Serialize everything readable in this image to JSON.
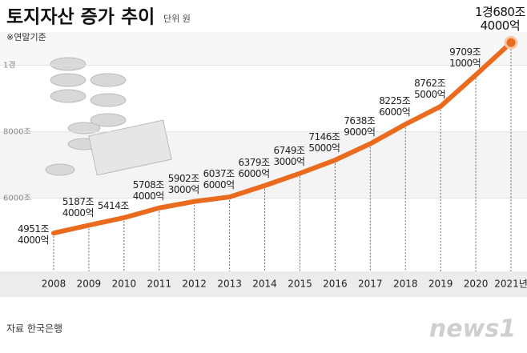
{
  "chart_data": {
    "type": "line",
    "title": "토지자산 증가 추이",
    "unit": "단위 원",
    "note": "※연말기준",
    "source": "자료 한국은행",
    "categories": [
      "2008",
      "2009",
      "2010",
      "2011",
      "2012",
      "2013",
      "2014",
      "2015",
      "2016",
      "2017",
      "2018",
      "2019",
      "2020",
      "2021년"
    ],
    "values": [
      4951.4,
      5187.4,
      5414,
      5708.4,
      5902.3,
      6037.6,
      6379.6,
      6749.3,
      7146.5,
      7638.9,
      8225.6,
      8762.5,
      9709.1,
      10680.4
    ],
    "value_labels": [
      "4951조\n4000억",
      "5187조\n4000억",
      "5414조",
      "5708조\n4000억",
      "5902조\n3000억",
      "6037조\n6000억",
      "6379조\n6000억",
      "6749조\n3000억",
      "7146조\n5000억",
      "7638조\n9000억",
      "8225조\n6000억",
      "8762조\n5000억",
      "9709조\n1000억",
      "1경680조\n4000억"
    ],
    "color": "#ea6a1e",
    "ylim": [
      3800,
      11000
    ],
    "yticks": [
      {
        "value": 6000,
        "label": "6000조"
      },
      {
        "value": 8000,
        "label": "8000조"
      },
      {
        "value": 10000,
        "label": "1경"
      }
    ],
    "grid": true
  },
  "logo": "news1"
}
